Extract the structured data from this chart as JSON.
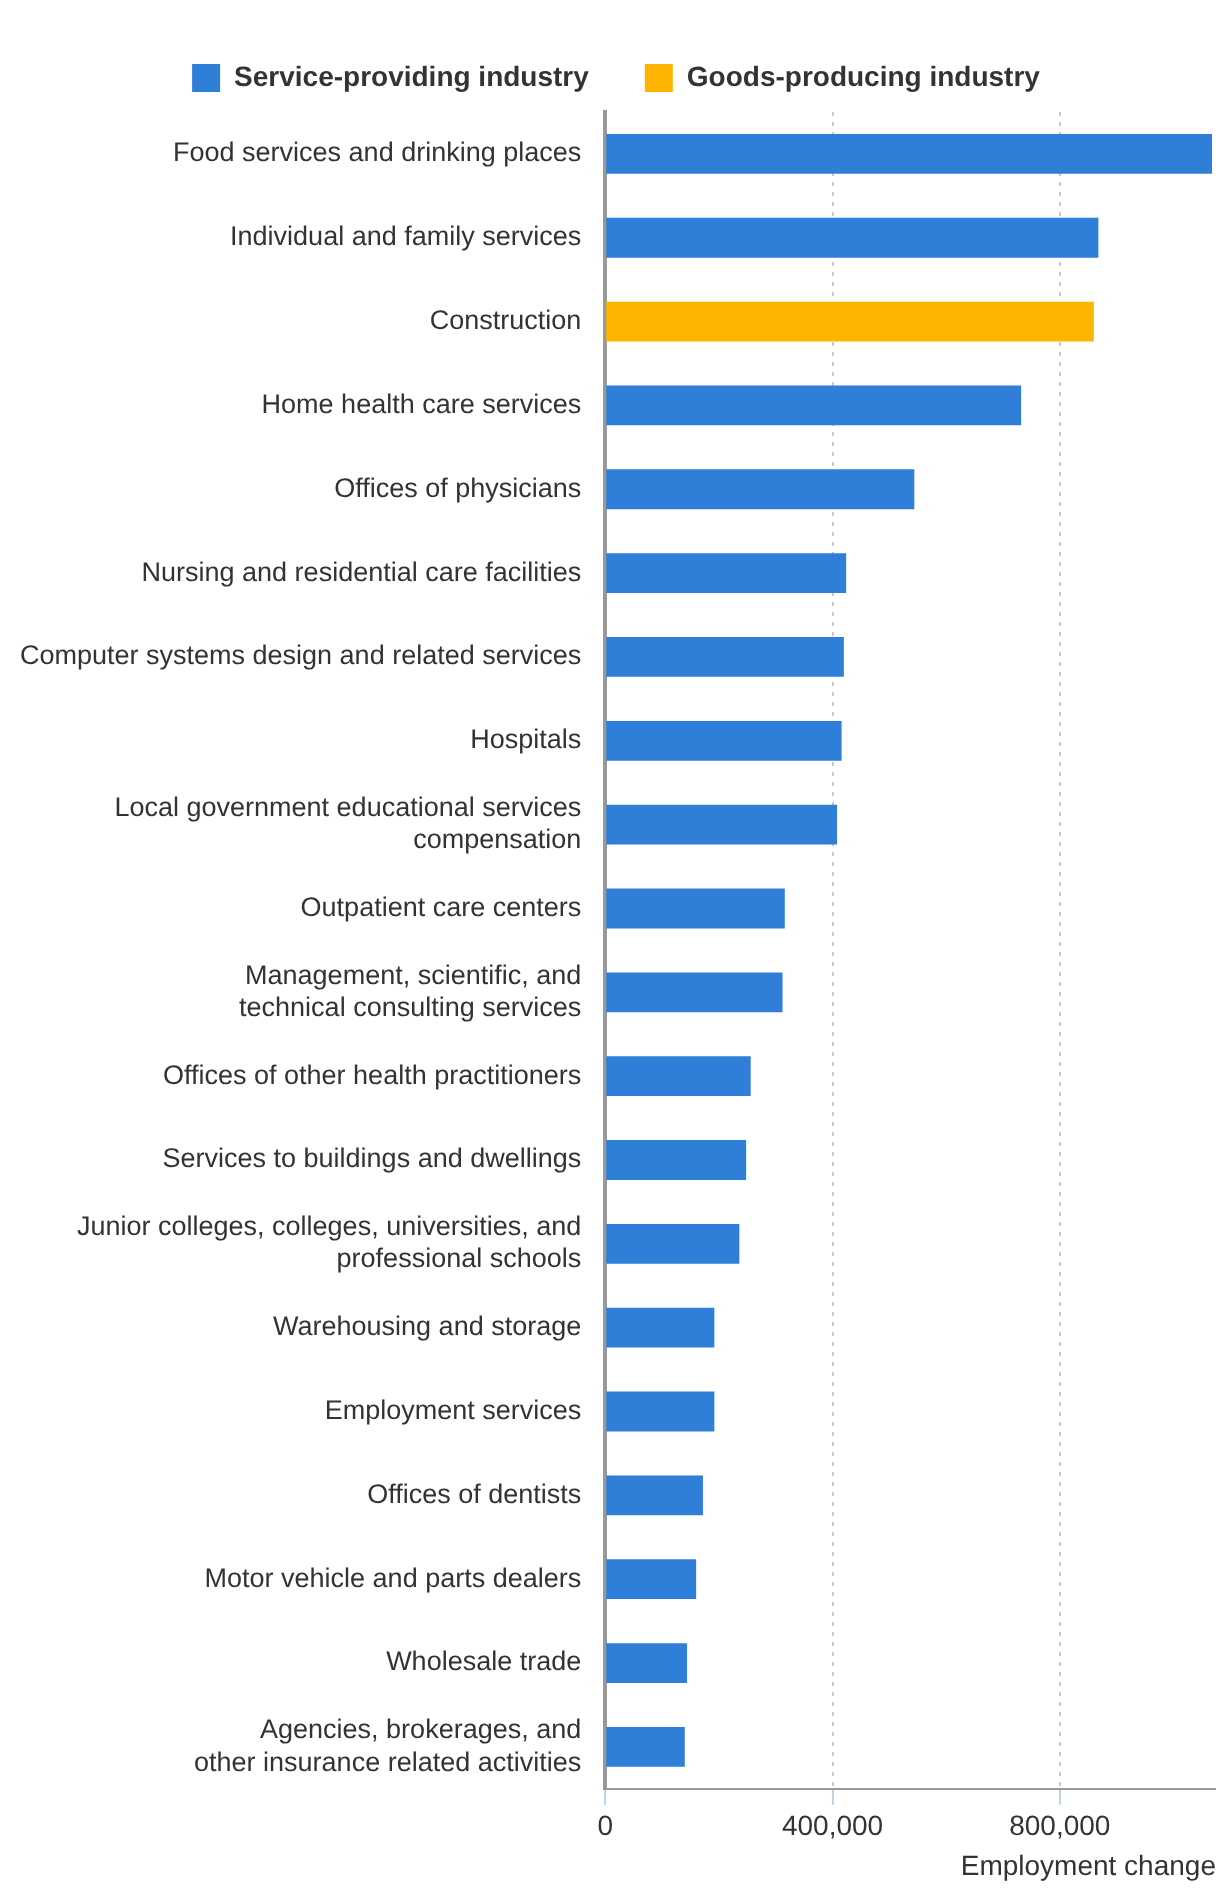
{
  "chart_data": {
    "type": "bar",
    "orientation": "horizontal",
    "xlabel": "Employment change",
    "categories": [
      "Food services and drinking places",
      "Individual and family services",
      "Construction",
      "Home health care services",
      "Offices of physicians",
      "Nursing and residential care facilities",
      "Computer systems design and related services",
      "Hospitals",
      "Local government educational services\ncompensation",
      "Outpatient care centers",
      "Management, scientific, and\ntechnical consulting services",
      "Offices of other health practitioners",
      "Services to buildings and dwellings",
      "Junior colleges, colleges, universities, and\nprofessional schools",
      "Warehousing and storage",
      "Employment services",
      "Offices of dentists",
      "Motor vehicle and parts dealers",
      "Wholesale trade",
      "Agencies, brokerages, and\nother insurance related activities"
    ],
    "series": [
      {
        "name": "Service-providing industry",
        "color": "#2f7ed8",
        "values": [
          1068000,
          868000,
          null,
          732000,
          544000,
          424000,
          420000,
          416000,
          408000,
          316000,
          312000,
          256000,
          248000,
          236000,
          192000,
          192000,
          172000,
          160000,
          144000,
          140000
        ]
      },
      {
        "name": "Goods-producing industry",
        "color": "#ffb400",
        "values": [
          null,
          null,
          860000,
          null,
          null,
          null,
          null,
          null,
          null,
          null,
          null,
          null,
          null,
          null,
          null,
          null,
          null,
          null,
          null,
          null
        ]
      }
    ],
    "xlim": [
      0,
      1075000
    ],
    "xticks": [
      0,
      {
        "value": 400000,
        "label": "400,000"
      },
      {
        "value": 800000,
        "label": "800,000"
      }
    ],
    "grid": "x",
    "legend": "top"
  }
}
